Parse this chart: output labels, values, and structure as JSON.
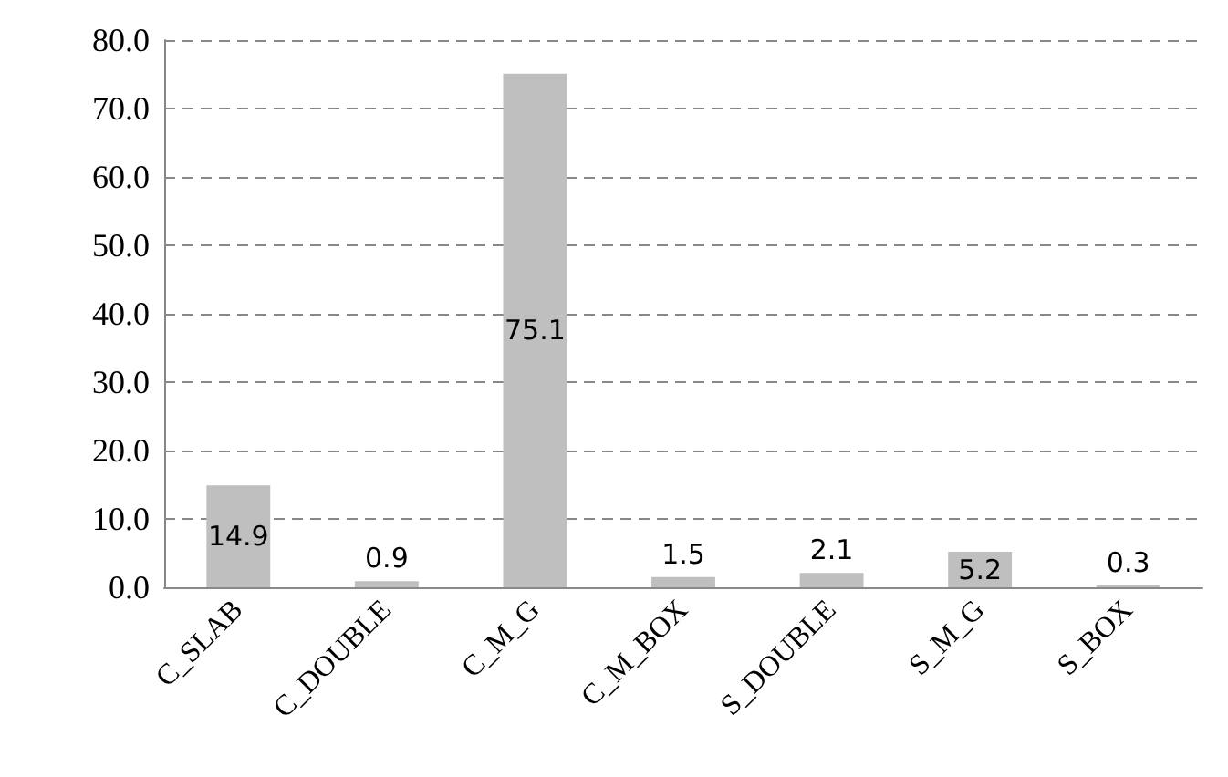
{
  "chart_data": {
    "type": "bar",
    "categories": [
      "C_SLAB",
      "C_DOUBLE",
      "C_M_G",
      "C_M_BOX",
      "S_DOUBLE",
      "S_M_G",
      "S_BOX"
    ],
    "values": [
      14.9,
      0.9,
      75.1,
      1.5,
      2.1,
      5.2,
      0.3
    ],
    "color": "#bfbfbf",
    "ylim": [
      0,
      80
    ],
    "yticks": [
      {
        "value": 0,
        "label": "0.0"
      },
      {
        "value": 10,
        "label": "10.0"
      },
      {
        "value": 20,
        "label": "20.0"
      },
      {
        "value": 30,
        "label": "30.0"
      },
      {
        "value": 40,
        "label": "40.0"
      },
      {
        "value": 50,
        "label": "50.0"
      },
      {
        "value": 60,
        "label": "60.0"
      },
      {
        "value": 70,
        "label": "70.0"
      },
      {
        "value": 80,
        "label": "80.0"
      }
    ],
    "grid": "y",
    "data_labels": true
  }
}
